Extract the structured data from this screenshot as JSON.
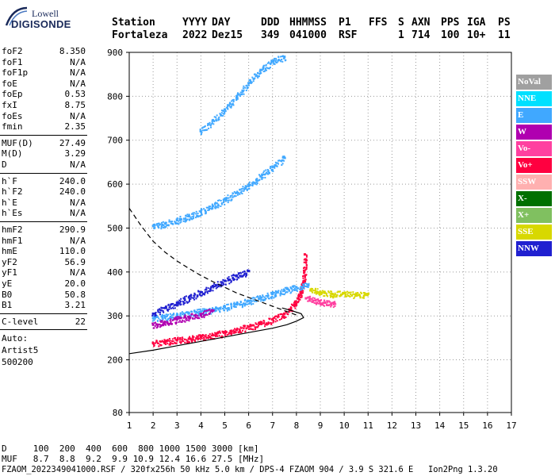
{
  "logo": {
    "line1": "Lowell",
    "line2": "DIGISONDE"
  },
  "header": {
    "labels": [
      "Station",
      "YYYY",
      "DAY",
      "DDD",
      "HHMMSS",
      "P1",
      "FFS",
      "S",
      "AXN",
      "PPS",
      "IGA",
      "PS"
    ],
    "values": [
      "Fortaleza",
      "2022",
      "Dez15",
      "349",
      "041000",
      "RSF",
      "1",
      "714",
      "100",
      "10+",
      "11"
    ]
  },
  "params": {
    "group1": [
      {
        "k": "foF2",
        "v": "8.350"
      },
      {
        "k": "foF1",
        "v": "N/A"
      },
      {
        "k": "foF1p",
        "v": "N/A"
      },
      {
        "k": "foE",
        "v": "N/A"
      },
      {
        "k": "foEp",
        "v": "0.53"
      },
      {
        "k": "fxI",
        "v": "8.75"
      },
      {
        "k": "foEs",
        "v": "N/A"
      },
      {
        "k": "fmin",
        "v": "2.35"
      }
    ],
    "group2": [
      {
        "k": "MUF(D)",
        "v": "27.49"
      },
      {
        "k": "M(D)",
        "v": "3.29"
      },
      {
        "k": "D",
        "v": "N/A"
      }
    ],
    "group3": [
      {
        "k": "h`F",
        "v": "240.0"
      },
      {
        "k": "h`F2",
        "v": "240.0"
      },
      {
        "k": "h`E",
        "v": "N/A"
      },
      {
        "k": "h`Es",
        "v": "N/A"
      }
    ],
    "group4": [
      {
        "k": "hmF2",
        "v": "290.9"
      },
      {
        "k": "hmF1",
        "v": "N/A"
      },
      {
        "k": "hmE",
        "v": "110.0"
      },
      {
        "k": "yF2",
        "v": "56.9"
      },
      {
        "k": "yF1",
        "v": "N/A"
      },
      {
        "k": "yE",
        "v": "20.0"
      },
      {
        "k": "B0",
        "v": "50.8"
      },
      {
        "k": "B1",
        "v": "3.21"
      }
    ],
    "clevel": {
      "k": "C-level",
      "v": "22"
    },
    "auto": [
      "Auto:",
      "Artist5",
      "500200"
    ]
  },
  "legend": [
    {
      "label": "NoVal",
      "color": "#a0a0a0"
    },
    {
      "label": "NNE",
      "color": "#00e0ff"
    },
    {
      "label": "E",
      "color": "#40a8ff"
    },
    {
      "label": "W",
      "color": "#b000b0"
    },
    {
      "label": "Vo-",
      "color": "#ff40a0"
    },
    {
      "label": "Vo+",
      "color": "#ff0040"
    },
    {
      "label": "SSW",
      "color": "#ffb0b0"
    },
    {
      "label": "X-",
      "color": "#007000"
    },
    {
      "label": "X+",
      "color": "#80c060"
    },
    {
      "label": "SSE",
      "color": "#d8d800"
    },
    {
      "label": "NNW",
      "color": "#2020d0"
    }
  ],
  "bottom": {
    "d_row": "D     100  200  400  600  800 1000 1500 3000 [km]",
    "muf_row": "MUF   8.7  8.8  9.2  9.9 10.9 12.4 16.6 27.5 [MHz]",
    "footer": "FZAOM_2022349041000.RSF / 320fx256h 50 kHz 5.0 km / DPS-4 FZAOM 904 / 3.9 S 321.6 E   Ion2Png 1.3.20"
  },
  "chart_data": {
    "type": "scatter",
    "xlabel": "",
    "ylabel": "",
    "xlim": [
      1,
      17
    ],
    "ylim": [
      80,
      900
    ],
    "xticks": [
      1,
      2,
      3,
      4,
      5,
      6,
      7,
      8,
      9,
      10,
      11,
      12,
      13,
      14,
      15,
      16,
      17
    ],
    "yticks": [
      80,
      200,
      300,
      400,
      500,
      600,
      700,
      800,
      900
    ],
    "grid": "dotted",
    "legend_position": "right",
    "series": [
      {
        "color": "#ff0040",
        "role": "O-trace",
        "points": [
          [
            2.0,
            238
          ],
          [
            2.5,
            242
          ],
          [
            3.0,
            245
          ],
          [
            3.5,
            248
          ],
          [
            4.0,
            252
          ],
          [
            4.5,
            256
          ],
          [
            5.0,
            262
          ],
          [
            5.5,
            268
          ],
          [
            6.0,
            275
          ],
          [
            6.5,
            283
          ],
          [
            7.0,
            292
          ],
          [
            7.5,
            305
          ],
          [
            7.9,
            325
          ],
          [
            8.1,
            345
          ],
          [
            8.25,
            370
          ],
          [
            8.33,
            400
          ],
          [
            8.35,
            440
          ]
        ]
      },
      {
        "color": "#40a8ff",
        "role": "E-trace-lower",
        "points": [
          [
            2.0,
            295
          ],
          [
            2.5,
            298
          ],
          [
            3.0,
            302
          ],
          [
            3.5,
            306
          ],
          [
            4.0,
            310
          ],
          [
            4.5,
            315
          ],
          [
            5.0,
            320
          ],
          [
            5.5,
            326
          ],
          [
            6.0,
            334
          ],
          [
            6.5,
            342
          ],
          [
            7.0,
            350
          ],
          [
            7.5,
            358
          ],
          [
            8.0,
            365
          ],
          [
            8.5,
            370
          ]
        ]
      },
      {
        "color": "#2020d0",
        "role": "NNW-trace",
        "points": [
          [
            2.0,
            305
          ],
          [
            2.5,
            318
          ],
          [
            3.0,
            330
          ],
          [
            3.5,
            342
          ],
          [
            4.0,
            354
          ],
          [
            4.5,
            368
          ],
          [
            5.0,
            380
          ],
          [
            5.5,
            392
          ],
          [
            6.0,
            402
          ]
        ]
      },
      {
        "color": "#b000b0",
        "role": "W-trace",
        "points": [
          [
            2.0,
            280
          ],
          [
            2.5,
            286
          ],
          [
            3.0,
            292
          ],
          [
            3.5,
            298
          ],
          [
            4.0,
            304
          ],
          [
            4.5,
            312
          ]
        ]
      },
      {
        "color": "#d8d800",
        "role": "SSE-cluster",
        "points": [
          [
            8.6,
            360
          ],
          [
            9.0,
            355
          ],
          [
            9.5,
            350
          ],
          [
            10.0,
            352
          ],
          [
            10.5,
            348
          ],
          [
            11.0,
            350
          ]
        ]
      },
      {
        "color": "#ff40a0",
        "role": "Vo- cluster",
        "points": [
          [
            8.4,
            340
          ],
          [
            8.8,
            335
          ],
          [
            9.2,
            330
          ],
          [
            9.6,
            328
          ]
        ]
      },
      {
        "color": "#40a8ff",
        "role": "E-trace-second-hop",
        "points": [
          [
            2.0,
            505
          ],
          [
            2.5,
            510
          ],
          [
            3.0,
            518
          ],
          [
            3.5,
            527
          ],
          [
            4.0,
            537
          ],
          [
            4.5,
            550
          ],
          [
            5.0,
            565
          ],
          [
            5.5,
            580
          ],
          [
            6.0,
            598
          ],
          [
            6.5,
            618
          ],
          [
            7.0,
            640
          ],
          [
            7.5,
            660
          ]
        ]
      },
      {
        "color": "#40a8ff",
        "role": "E-trace-third-hop",
        "points": [
          [
            4.0,
            720
          ],
          [
            4.5,
            745
          ],
          [
            5.0,
            770
          ],
          [
            5.5,
            800
          ],
          [
            6.0,
            830
          ],
          [
            6.5,
            860
          ],
          [
            7.0,
            880
          ],
          [
            7.5,
            890
          ]
        ]
      }
    ],
    "profile_curves": [
      {
        "style": "solid",
        "color": "#000000",
        "points": [
          [
            1.0,
            214
          ],
          [
            2.0,
            222
          ],
          [
            3.0,
            232
          ],
          [
            4.0,
            242
          ],
          [
            5.0,
            252
          ],
          [
            6.0,
            262
          ],
          [
            7.0,
            272
          ],
          [
            7.6,
            280
          ],
          [
            8.0,
            288
          ],
          [
            8.3,
            296
          ],
          [
            8.2,
            305
          ],
          [
            7.8,
            312
          ],
          [
            7.4,
            318
          ]
        ]
      },
      {
        "style": "dashed",
        "color": "#000000",
        "points": [
          [
            1.0,
            545
          ],
          [
            1.5,
            505
          ],
          [
            2.0,
            470
          ],
          [
            2.5,
            445
          ],
          [
            3.0,
            425
          ],
          [
            3.5,
            408
          ],
          [
            4.0,
            392
          ],
          [
            4.5,
            378
          ],
          [
            5.0,
            365
          ],
          [
            5.5,
            352
          ],
          [
            6.0,
            342
          ],
          [
            6.5,
            332
          ],
          [
            7.0,
            322
          ],
          [
            7.5,
            312
          ],
          [
            8.0,
            302
          ]
        ]
      }
    ]
  }
}
